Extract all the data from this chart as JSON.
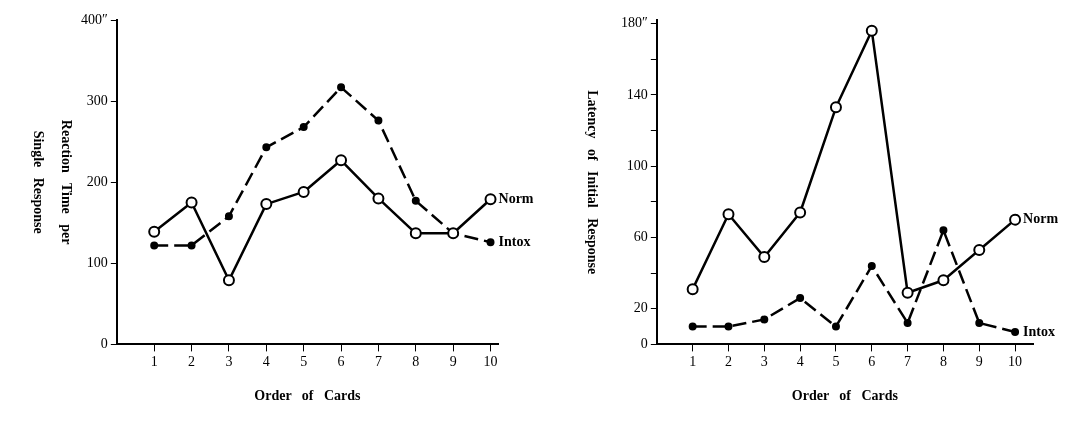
{
  "chart_data": [
    {
      "type": "line",
      "xlabel": "Order of Cards",
      "ylabel": "Reaction Time per\nSingle Response",
      "x": [
        1,
        2,
        3,
        4,
        5,
        6,
        7,
        8,
        9,
        10
      ],
      "xlim": [
        0,
        10.2
      ],
      "xticks": [
        1,
        2,
        3,
        4,
        5,
        6,
        7,
        8,
        9,
        10
      ],
      "ylim": [
        0,
        400
      ],
      "yticks": [
        0,
        100,
        200,
        300,
        {
          "value": 400,
          "label": "400″"
        }
      ],
      "grid": false,
      "legend": false,
      "series": [
        {
          "name": "Norm",
          "color": "#000000",
          "marker": "circle",
          "line_style": "solid",
          "values": [
            139,
            175,
            79,
            173,
            188,
            227,
            180,
            137,
            137,
            179
          ]
        },
        {
          "name": "Intox",
          "color": "#000000",
          "marker": "circle",
          "line_style": "dashed",
          "values": [
            122,
            122,
            158,
            243,
            268,
            317,
            276,
            177,
            137,
            126
          ]
        }
      ]
    },
    {
      "type": "line",
      "xlabel": "Order of Cards",
      "ylabel": "Latency of Initial Response",
      "x": [
        1,
        2,
        3,
        4,
        5,
        6,
        7,
        8,
        9,
        10
      ],
      "xlim": [
        0,
        10.5
      ],
      "xticks": [
        1,
        2,
        3,
        4,
        5,
        6,
        7,
        8,
        9,
        10
      ],
      "ylim": [
        0,
        182
      ],
      "yticks": [
        0,
        20,
        {
          "value": 40,
          "label": null
        },
        60,
        {
          "value": 80,
          "label": null
        },
        100,
        {
          "value": 120,
          "label": null
        },
        140,
        {
          "value": 160,
          "label": null
        },
        {
          "value": 180,
          "label": "180″"
        }
      ],
      "grid": false,
      "legend": false,
      "series": [
        {
          "name": "Norm",
          "color": "#000000",
          "marker": "circle",
          "line_style": "solid",
          "values": [
            31,
            73,
            49,
            74,
            133,
            176,
            29,
            36,
            53,
            70
          ]
        },
        {
          "name": "Intox",
          "color": "#000000",
          "marker": "circle",
          "line_style": "dashed",
          "values": [
            10,
            10,
            14,
            26,
            10,
            44,
            12,
            64,
            12,
            7
          ]
        }
      ]
    }
  ]
}
